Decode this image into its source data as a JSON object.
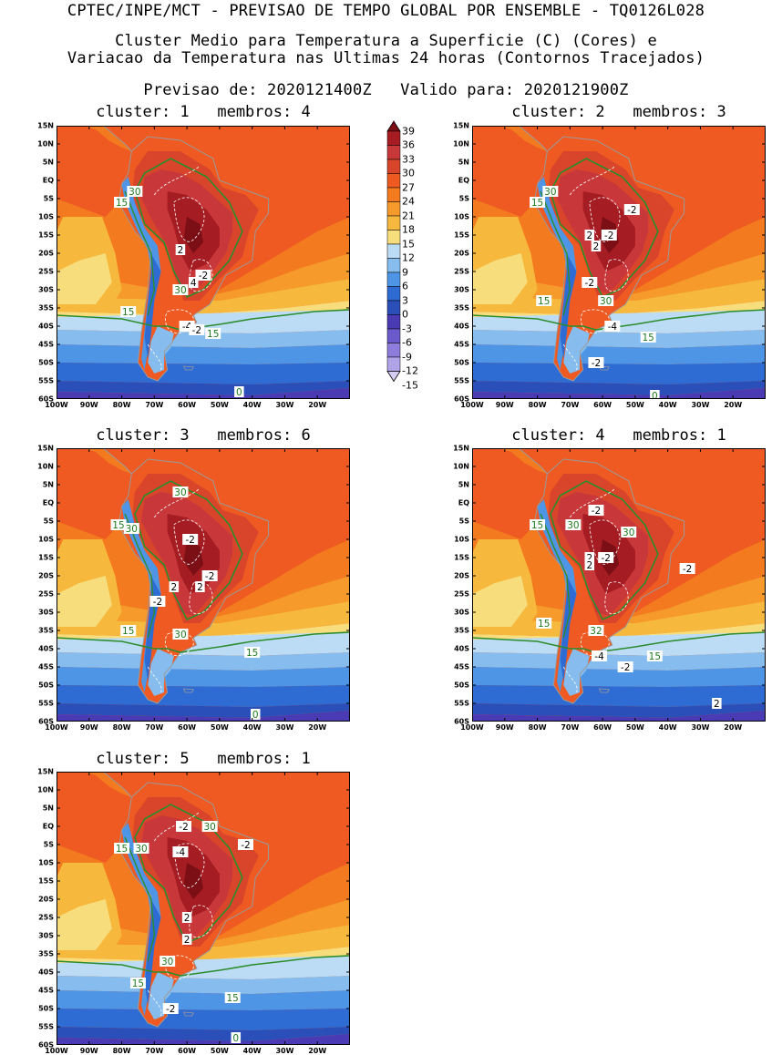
{
  "header": {
    "line1": "CPTEC/INPE/MCT - PREVISAO DE TEMPO GLOBAL POR ENSEMBLE - TQ0126L028",
    "line2": "Cluster Medio para Temperatura a Superficie (C) (Cores) e",
    "line3": "Variacao da Temperatura nas Ultimas 24 horas (Contornos Tracejados)",
    "line4": "Previsao de: 2020121400Z   Valido para: 2020121900Z"
  },
  "lat_labels": [
    "15N",
    "10N",
    "5N",
    "EQ",
    "5S",
    "10S",
    "15S",
    "20S",
    "25S",
    "30S",
    "35S",
    "40S",
    "45S",
    "50S",
    "55S",
    "60S"
  ],
  "lon_labels": [
    "100W",
    "90W",
    "80W",
    "70W",
    "60W",
    "50W",
    "40W",
    "30W",
    "20W"
  ],
  "colorbar": {
    "levels": [
      "39",
      "36",
      "33",
      "30",
      "27",
      "24",
      "21",
      "18",
      "15",
      "12",
      "9",
      "6",
      "3",
      "0",
      "-3",
      "-6",
      "-9",
      "-12",
      "-15"
    ],
    "colors": [
      "#7c0f16",
      "#a51c22",
      "#c8383a",
      "#d9452a",
      "#ee5a22",
      "#f47a1f",
      "#f59a2b",
      "#f6b93e",
      "#f8dd7c",
      "#bcdcf5",
      "#86bdee",
      "#4f95e6",
      "#2e6bd3",
      "#2b4fb8",
      "#4a3bb5",
      "#6b5acb",
      "#8e7ddb",
      "#b1a3e7",
      "#d6cdf4"
    ]
  },
  "clusters": [
    {
      "title": "cluster: 1   membros: 4",
      "labels": [
        {
          "t": "30",
          "c": "g"
        },
        {
          "t": "15",
          "c": "g"
        },
        {
          "t": "15",
          "c": "g"
        },
        {
          "t": "30",
          "c": "g"
        },
        {
          "t": "15",
          "c": "g"
        },
        {
          "t": "2",
          "c": "w"
        },
        {
          "t": "-2",
          "c": "w"
        },
        {
          "t": "4",
          "c": "w"
        },
        {
          "t": "-4",
          "c": "w"
        },
        {
          "t": "-2",
          "c": "w"
        },
        {
          "t": "0",
          "c": "g"
        }
      ]
    },
    {
      "title": "cluster: 2   membros: 3",
      "labels": [
        {
          "t": "30",
          "c": "g"
        },
        {
          "t": "15",
          "c": "g"
        },
        {
          "t": "-2",
          "c": "w"
        },
        {
          "t": "2",
          "c": "w"
        },
        {
          "t": "-2",
          "c": "w"
        },
        {
          "t": "2",
          "c": "w"
        },
        {
          "t": "-2",
          "c": "w"
        },
        {
          "t": "15",
          "c": "g"
        },
        {
          "t": "30",
          "c": "g"
        },
        {
          "t": "-4",
          "c": "w"
        },
        {
          "t": "15",
          "c": "g"
        },
        {
          "t": "-2",
          "c": "w"
        },
        {
          "t": "0",
          "c": "g"
        }
      ]
    },
    {
      "title": "cluster: 3   membros: 6",
      "labels": [
        {
          "t": "30",
          "c": "g"
        },
        {
          "t": "15",
          "c": "g"
        },
        {
          "t": "30",
          "c": "g"
        },
        {
          "t": "-2",
          "c": "w"
        },
        {
          "t": "-2",
          "c": "w"
        },
        {
          "t": "2",
          "c": "w"
        },
        {
          "t": "2",
          "c": "w"
        },
        {
          "t": "-2",
          "c": "w"
        },
        {
          "t": "15",
          "c": "g"
        },
        {
          "t": "30",
          "c": "g"
        },
        {
          "t": "15",
          "c": "g"
        },
        {
          "t": "0",
          "c": "g"
        }
      ]
    },
    {
      "title": "cluster: 4   membros: 1",
      "labels": [
        {
          "t": "-2",
          "c": "w"
        },
        {
          "t": "30",
          "c": "g"
        },
        {
          "t": "15",
          "c": "g"
        },
        {
          "t": "30",
          "c": "g"
        },
        {
          "t": "2",
          "c": "w"
        },
        {
          "t": "-2",
          "c": "w"
        },
        {
          "t": "2",
          "c": "w"
        },
        {
          "t": "-2",
          "c": "w"
        },
        {
          "t": "15",
          "c": "g"
        },
        {
          "t": "32",
          "c": "g"
        },
        {
          "t": "-4",
          "c": "w"
        },
        {
          "t": "15",
          "c": "g"
        },
        {
          "t": "-2",
          "c": "w"
        },
        {
          "t": "2",
          "c": "w"
        }
      ]
    },
    {
      "title": "cluster: 5   membros: 1",
      "labels": [
        {
          "t": "-2",
          "c": "w"
        },
        {
          "t": "30",
          "c": "g"
        },
        {
          "t": "-2",
          "c": "w"
        },
        {
          "t": "15",
          "c": "g"
        },
        {
          "t": "30",
          "c": "g"
        },
        {
          "t": "-4",
          "c": "w"
        },
        {
          "t": "2",
          "c": "w"
        },
        {
          "t": "2",
          "c": "w"
        },
        {
          "t": "30",
          "c": "g"
        },
        {
          "t": "15",
          "c": "g"
        },
        {
          "t": "15",
          "c": "g"
        },
        {
          "t": "-2",
          "c": "w"
        },
        {
          "t": "0",
          "c": "g"
        }
      ]
    }
  ]
}
